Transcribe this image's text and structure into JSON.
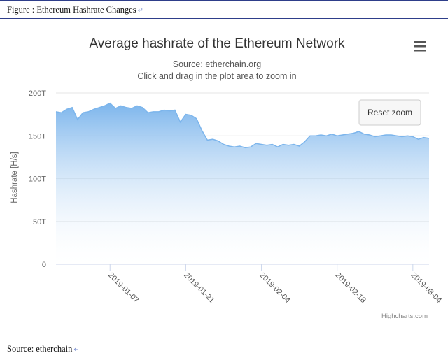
{
  "document": {
    "figure_caption": "Figure : Ethereum Hashrate Changes",
    "source_caption": "Source: etherchain",
    "paragraph_mark": "↵"
  },
  "chart": {
    "reset_zoom_label": "Reset zoom",
    "credits": "Highcharts.com",
    "menu_icon": "hamburger-menu-icon",
    "colors": {
      "area_top": "#7cb5ec",
      "area_bottom": "#ffffff",
      "line": "#7cb5ec",
      "grid": "#e6e6e6"
    }
  },
  "chart_data": {
    "type": "area",
    "title": "Average hashrate of the Ethereum Network",
    "subtitle": "Source: etherchain.org",
    "subtitle2": "Click and drag in the plot area to zoom in",
    "ylabel": "Hashrate [H/s]",
    "xlabel": "",
    "ylim": [
      0,
      200
    ],
    "yticks": [
      0,
      50,
      100,
      150,
      200
    ],
    "ytick_labels": [
      "0",
      "50T",
      "100T",
      "150T",
      "200T"
    ],
    "xlim": [
      "2018-12-28",
      "2019-03-07"
    ],
    "xticks": [
      "2019-01-07",
      "2019-01-21",
      "2019-02-04",
      "2019-02-18",
      "2019-03-04"
    ],
    "grid": true,
    "legend": "none",
    "series": [
      {
        "x": [
          "2018-12-28",
          "2018-12-29",
          "2018-12-30",
          "2018-12-31",
          "2019-01-01",
          "2019-01-02",
          "2019-01-03",
          "2019-01-04",
          "2019-01-05",
          "2019-01-06",
          "2019-01-07",
          "2019-01-08",
          "2019-01-09",
          "2019-01-10",
          "2019-01-11",
          "2019-01-12",
          "2019-01-13",
          "2019-01-14",
          "2019-01-15",
          "2019-01-16",
          "2019-01-17",
          "2019-01-18",
          "2019-01-19",
          "2019-01-20",
          "2019-01-21",
          "2019-01-22",
          "2019-01-23",
          "2019-01-24",
          "2019-01-25",
          "2019-01-26",
          "2019-01-27",
          "2019-01-28",
          "2019-01-29",
          "2019-01-30",
          "2019-01-31",
          "2019-02-01",
          "2019-02-02",
          "2019-02-03",
          "2019-02-04",
          "2019-02-05",
          "2019-02-06",
          "2019-02-07",
          "2019-02-08",
          "2019-02-09",
          "2019-02-10",
          "2019-02-11",
          "2019-02-12",
          "2019-02-13",
          "2019-02-14",
          "2019-02-15",
          "2019-02-16",
          "2019-02-17",
          "2019-02-18",
          "2019-02-19",
          "2019-02-20",
          "2019-02-21",
          "2019-02-22",
          "2019-02-23",
          "2019-02-24",
          "2019-02-25",
          "2019-02-26",
          "2019-02-27",
          "2019-02-28",
          "2019-03-01",
          "2019-03-02",
          "2019-03-03",
          "2019-03-04",
          "2019-03-05",
          "2019-03-06",
          "2019-03-07"
        ],
        "values": [
          178,
          177,
          181,
          183,
          169,
          177,
          178,
          181,
          183,
          185,
          188,
          182,
          185,
          183,
          182,
          185,
          183,
          177,
          178,
          178,
          180,
          179,
          180,
          166,
          175,
          174,
          170,
          156,
          145,
          146,
          144,
          140,
          138,
          137,
          138,
          136,
          137,
          141,
          140,
          139,
          140,
          137,
          140,
          139,
          140,
          138,
          143,
          150,
          150,
          151,
          150,
          152,
          150,
          151,
          152,
          153,
          155,
          152,
          151,
          149,
          150,
          151,
          151,
          150,
          149,
          150,
          149,
          146,
          148,
          147
        ]
      }
    ]
  }
}
